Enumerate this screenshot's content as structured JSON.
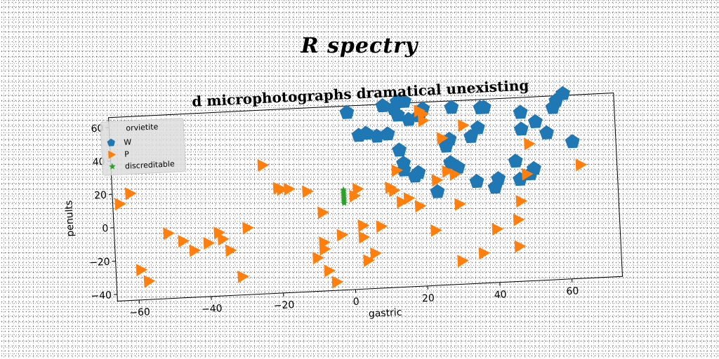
{
  "page_title": "R spectry",
  "chart_data": {
    "type": "scatter",
    "title": "d microphotographs dramatical unexisting",
    "xlabel": "gastric",
    "ylabel": "penults",
    "xlim": [
      -66,
      74
    ],
    "ylim": [
      -44,
      66
    ],
    "x_ticks": [
      -60,
      -40,
      -20,
      0,
      20,
      40,
      60
    ],
    "x_tick_labels": [
      "−60",
      "−40",
      "−20",
      "0",
      "20",
      "40",
      "60"
    ],
    "y_ticks": [
      -40,
      -20,
      0,
      20,
      40,
      60
    ],
    "y_tick_labels": [
      "−40",
      "−20",
      "0",
      "20",
      "40",
      "60"
    ],
    "grid": false,
    "legend": {
      "title": "orvietite",
      "placement": "top-left"
    },
    "series": [
      {
        "name": "W",
        "marker": "pentagon",
        "color": "#1f77b4",
        "x": [
          3,
          5,
          8,
          10,
          11,
          13,
          14,
          14,
          14,
          15,
          15,
          16,
          17,
          18,
          19,
          20,
          21,
          24,
          27,
          28,
          28,
          29,
          30,
          34,
          35,
          36,
          37,
          38,
          40,
          41,
          46,
          47,
          48,
          48,
          50,
          51,
          52,
          55,
          57,
          58,
          60,
          62,
          0
        ],
        "y": [
          48,
          49,
          47,
          65,
          48,
          63,
          59,
          67,
          38,
          26,
          30,
          67,
          56,
          22,
          24,
          58,
          62,
          12,
          39,
          29,
          43,
          62,
          26,
          44,
          17,
          49,
          61,
          61,
          13,
          18,
          28,
          17,
          47,
          57,
          20,
          23,
          51,
          44,
          59,
          63,
          67,
          38,
          62
        ]
      },
      {
        "name": "P",
        "marker": "triangle-right",
        "color": "#ff7f0e",
        "x": [
          -64,
          -51,
          -47,
          -44,
          -40,
          -37,
          -36,
          -34,
          -31,
          -29,
          -24,
          -20,
          -19,
          -17,
          -12,
          -10,
          -8,
          -8,
          -8,
          -7,
          -5,
          -3,
          1,
          2,
          3,
          3,
          4,
          6,
          8,
          11,
          12,
          13,
          14,
          16,
          19,
          20,
          21,
          21,
          23,
          24,
          26,
          27,
          29,
          30,
          30,
          32,
          36,
          40,
          46,
          46,
          47,
          49,
          50,
          64,
          -61,
          -59,
          -57
        ],
        "y": [
          14,
          -5,
          -10,
          -16,
          -12,
          -6,
          -10,
          -17,
          -33,
          -4,
          33,
          19,
          18,
          18,
          16,
          -24,
          -15,
          -19,
          3,
          -32,
          -39,
          -11,
          12,
          16,
          -13,
          -6,
          -27,
          -23,
          -7,
          16,
          14,
          26,
          7,
          9,
          4,
          61,
          55,
          59,
          -11,
          19,
          44,
          24,
          22,
          4,
          -30,
          51,
          -26,
          -12,
          -23,
          -7,
          4,
          20,
          38,
          24,
          20,
          -26,
          -33
        ],
        "x_note": "",
        "y_note": ""
      },
      {
        "name": "discreditable",
        "marker": "star",
        "color": "#2ca02c",
        "x": [
          -2,
          -2,
          -2,
          -2,
          -2,
          -2,
          -2,
          -2,
          -2
        ],
        "y": [
          8,
          9,
          10,
          11,
          12,
          13,
          14,
          15,
          16
        ]
      }
    ]
  }
}
